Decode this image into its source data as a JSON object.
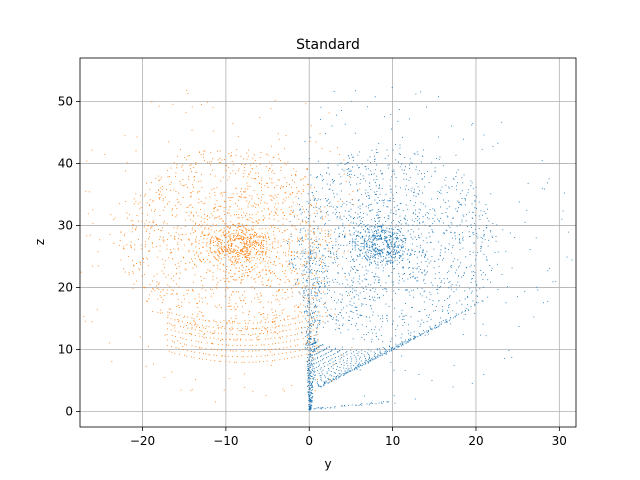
{
  "chart_data": {
    "type": "scatter",
    "title": "Standard",
    "xlabel": "y",
    "ylabel": "z",
    "xlim": [
      -27.5,
      32
    ],
    "ylim": [
      -2.5,
      57
    ],
    "xticks": [
      -20,
      -10,
      0,
      10,
      20,
      30
    ],
    "yticks": [
      0,
      10,
      20,
      30,
      40,
      50
    ],
    "grid": true,
    "series": [
      {
        "color": "#1f77b4",
        "description_points": "spiral cloud centered near y=8.5, z=27 plus a stem descending toward y=0, z=0",
        "center": [
          8.5,
          27
        ],
        "x_extent": [
          0,
          29
        ],
        "z_extent": [
          0.3,
          54
        ]
      },
      {
        "color": "#ff7f0e",
        "description_points": "spiral cloud centered near y=-8.5, z=27",
        "center": [
          -8.5,
          27
        ],
        "x_extent": [
          -25,
          5
        ],
        "z_extent": [
          8,
          51
        ]
      }
    ]
  }
}
